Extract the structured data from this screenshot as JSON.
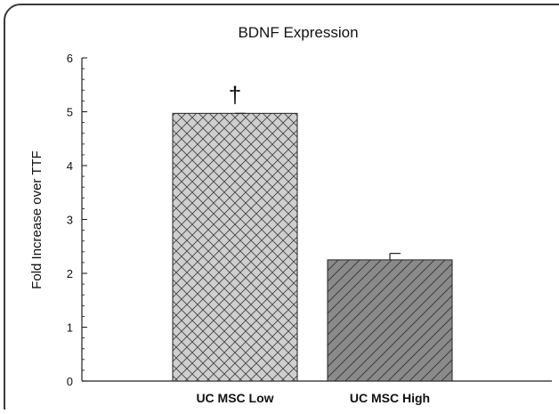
{
  "chart_data": {
    "type": "bar",
    "title": "BDNF Expression",
    "ylabel": "Fold Increase over TTF",
    "xlabel": "",
    "categories": [
      "UC MSC Low",
      "UC MSC High"
    ],
    "values": [
      4.97,
      2.25
    ],
    "errors": [
      0.0,
      0.12
    ],
    "annotations": [
      "†",
      ""
    ],
    "ylim": [
      0,
      6
    ],
    "yticks": [
      "0",
      "1",
      "2",
      "3",
      "4",
      "5",
      "6"
    ],
    "grid": false,
    "legend": "none",
    "colors": {
      "bar_low": "#cfcfcf",
      "bar_high": "#8a8a8a",
      "hatch": "#444444",
      "axis": "#222222",
      "frame": "#3a3a3a"
    }
  }
}
